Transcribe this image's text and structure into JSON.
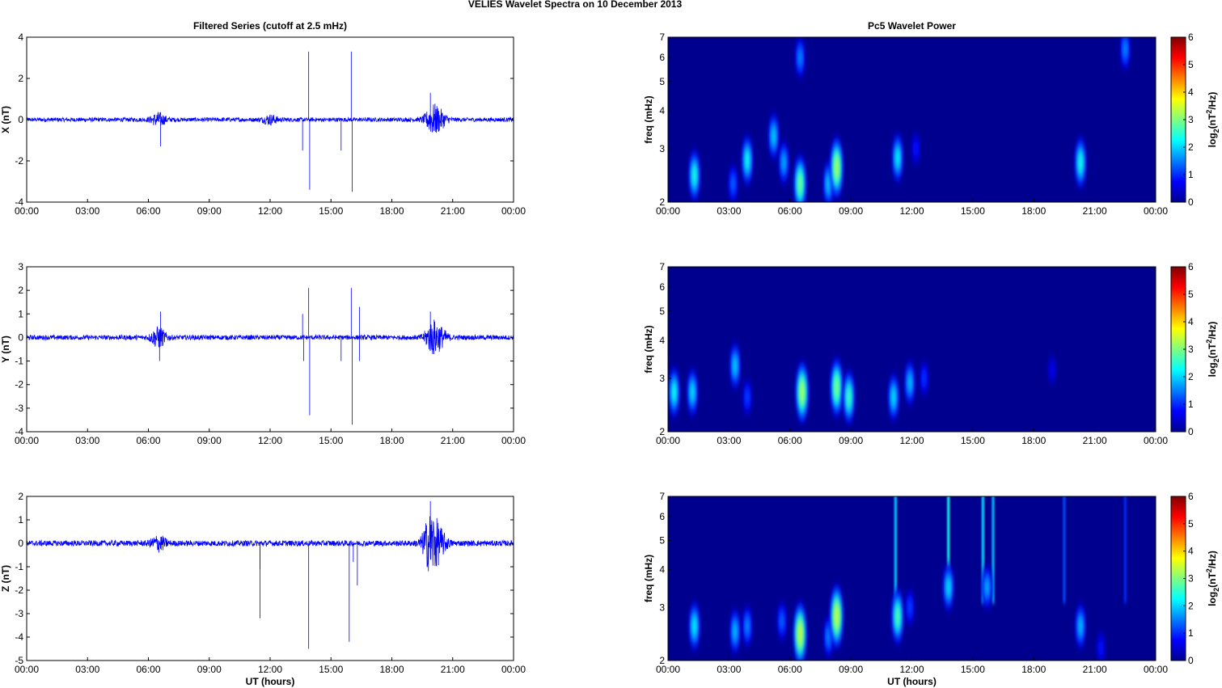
{
  "figure_title": "VELIES Wavelet Spectra on 10 December  2013",
  "colors": {
    "signal": "#0000ff",
    "spectrogram_background": "#00008f"
  },
  "chart_data": [
    {
      "type": "line",
      "panel": "x-series",
      "title": "Filtered Series (cutoff at 2.5 mHz)",
      "xlabel": "",
      "ylabel": "X (nT)",
      "x_ticks": [
        "00:00",
        "03:00",
        "06:00",
        "09:00",
        "12:00",
        "15:00",
        "18:00",
        "21:00",
        "00:00"
      ],
      "xlim": [
        0,
        24
      ],
      "ylim": [
        -4,
        4
      ],
      "y_ticks": [
        -4,
        -2,
        0,
        2,
        4
      ],
      "noise_amplitude": 0.1,
      "bursts": [
        [
          6.5,
          0.3
        ],
        [
          20.0,
          0.6
        ],
        [
          20.4,
          0.3
        ],
        [
          12.0,
          0.2
        ]
      ],
      "spikes": [
        [
          13.6,
          -1.5
        ],
        [
          13.9,
          3.3
        ],
        [
          13.95,
          -3.4
        ],
        [
          15.5,
          -1.5
        ],
        [
          16.0,
          3.3
        ],
        [
          16.05,
          -3.5
        ],
        [
          6.6,
          -1.3
        ],
        [
          19.9,
          1.3
        ]
      ]
    },
    {
      "type": "heatmap",
      "panel": "x-spectrum",
      "title": "Pc5 Wavelet Power",
      "xlabel": "",
      "ylabel": "freq (mHz)",
      "x_ticks": [
        "00:00",
        "03:00",
        "06:00",
        "09:00",
        "12:00",
        "15:00",
        "18:00",
        "21:00",
        "00:00"
      ],
      "xlim": [
        0,
        24
      ],
      "ylim": [
        2,
        7
      ],
      "y_scale": "log",
      "y_ticks": [
        2,
        3,
        4,
        5,
        6,
        7
      ],
      "colorbar_label": "log2(nT2/Hz)",
      "colorbar_ticks": [
        0,
        1,
        2,
        3,
        4,
        5,
        6
      ],
      "blobs": [
        {
          "t": 1.3,
          "f": 2.45,
          "power": 2.4
        },
        {
          "t": 3.9,
          "f": 2.75,
          "power": 2.3
        },
        {
          "t": 3.2,
          "f": 2.3,
          "power": 1.4
        },
        {
          "t": 5.2,
          "f": 3.3,
          "power": 2.0
        },
        {
          "t": 5.7,
          "f": 2.7,
          "power": 1.8
        },
        {
          "t": 6.5,
          "f": 2.3,
          "power": 2.9
        },
        {
          "t": 6.5,
          "f": 6.0,
          "power": 1.6
        },
        {
          "t": 7.9,
          "f": 2.3,
          "power": 2.0
        },
        {
          "t": 8.3,
          "f": 2.6,
          "power": 3.2
        },
        {
          "t": 11.3,
          "f": 2.8,
          "power": 2.2
        },
        {
          "t": 12.2,
          "f": 3.0,
          "power": 0.9
        },
        {
          "t": 20.3,
          "f": 2.7,
          "power": 2.4
        },
        {
          "t": 22.5,
          "f": 6.4,
          "power": 1.6
        }
      ]
    },
    {
      "type": "line",
      "panel": "y-series",
      "title": "",
      "xlabel": "",
      "ylabel": "Y (nT)",
      "x_ticks": [
        "00:00",
        "03:00",
        "06:00",
        "09:00",
        "12:00",
        "15:00",
        "18:00",
        "21:00",
        "00:00"
      ],
      "xlim": [
        0,
        24
      ],
      "ylim": [
        -4,
        3
      ],
      "y_ticks": [
        -4,
        -3,
        -2,
        -1,
        0,
        1,
        2,
        3
      ],
      "noise_amplitude": 0.1,
      "bursts": [
        [
          6.5,
          0.4
        ],
        [
          20.0,
          0.6
        ],
        [
          20.4,
          0.3
        ]
      ],
      "spikes": [
        [
          13.6,
          1.0
        ],
        [
          13.65,
          -1.0
        ],
        [
          13.9,
          2.1
        ],
        [
          13.95,
          -3.3
        ],
        [
          15.5,
          -1.0
        ],
        [
          16.0,
          2.1
        ],
        [
          16.05,
          -3.7
        ],
        [
          16.4,
          1.3
        ],
        [
          16.4,
          -1.0
        ],
        [
          6.6,
          1.1
        ],
        [
          6.55,
          -1.0
        ],
        [
          19.9,
          1.1
        ]
      ]
    },
    {
      "type": "heatmap",
      "panel": "y-spectrum",
      "title": "",
      "xlabel": "",
      "ylabel": "freq (mHz)",
      "x_ticks": [
        "00:00",
        "03:00",
        "06:00",
        "09:00",
        "12:00",
        "15:00",
        "18:00",
        "21:00",
        "00:00"
      ],
      "xlim": [
        0,
        24
      ],
      "ylim": [
        2,
        7
      ],
      "y_scale": "log",
      "y_ticks": [
        2,
        3,
        4,
        5,
        6,
        7
      ],
      "colorbar_label": "log2(nT2/Hz)",
      "colorbar_ticks": [
        0,
        1,
        2,
        3,
        4,
        5,
        6
      ],
      "blobs": [
        {
          "t": 0.3,
          "f": 2.7,
          "power": 2.3
        },
        {
          "t": 1.2,
          "f": 2.7,
          "power": 2.1
        },
        {
          "t": 3.3,
          "f": 3.3,
          "power": 2.0
        },
        {
          "t": 3.9,
          "f": 2.6,
          "power": 1.2
        },
        {
          "t": 6.6,
          "f": 2.7,
          "power": 3.2
        },
        {
          "t": 8.3,
          "f": 2.8,
          "power": 3.0
        },
        {
          "t": 8.9,
          "f": 2.6,
          "power": 2.6
        },
        {
          "t": 11.1,
          "f": 2.6,
          "power": 2.1
        },
        {
          "t": 11.9,
          "f": 2.9,
          "power": 1.9
        },
        {
          "t": 12.6,
          "f": 3.0,
          "power": 1.1
        },
        {
          "t": 18.9,
          "f": 3.2,
          "power": 0.7
        }
      ]
    },
    {
      "type": "line",
      "panel": "z-series",
      "title": "",
      "xlabel": "UT (hours)",
      "ylabel": "Z (nT)",
      "x_ticks": [
        "00:00",
        "03:00",
        "06:00",
        "09:00",
        "12:00",
        "15:00",
        "18:00",
        "21:00",
        "00:00"
      ],
      "xlim": [
        0,
        24
      ],
      "ylim": [
        -5,
        2
      ],
      "y_ticks": [
        -5,
        -4,
        -3,
        -2,
        -1,
        0,
        1,
        2
      ],
      "noise_amplitude": 0.12,
      "bursts": [
        [
          6.5,
          0.3
        ],
        [
          20.0,
          0.8
        ],
        [
          20.4,
          0.4
        ],
        [
          19.8,
          0.5
        ]
      ],
      "spikes": [
        [
          11.5,
          -3.2
        ],
        [
          11.5,
          -1.1
        ],
        [
          13.9,
          -4.5
        ],
        [
          15.9,
          -4.2
        ],
        [
          16.3,
          -1.8
        ],
        [
          16.1,
          -0.8
        ],
        [
          19.9,
          1.8
        ]
      ]
    },
    {
      "type": "heatmap",
      "panel": "z-spectrum",
      "title": "",
      "xlabel": "UT (hours)",
      "ylabel": "freq (mHz)",
      "x_ticks": [
        "00:00",
        "03:00",
        "06:00",
        "09:00",
        "12:00",
        "15:00",
        "18:00",
        "21:00",
        "00:00"
      ],
      "xlim": [
        0,
        24
      ],
      "ylim": [
        2,
        7
      ],
      "y_scale": "log",
      "y_ticks": [
        2,
        3,
        4,
        5,
        6,
        7
      ],
      "colorbar_label": "log2(nT2/Hz)",
      "colorbar_ticks": [
        0,
        1,
        2,
        3,
        4,
        5,
        6
      ],
      "blobs": [
        {
          "t": 1.3,
          "f": 2.6,
          "power": 2.2
        },
        {
          "t": 3.3,
          "f": 2.5,
          "power": 1.9
        },
        {
          "t": 3.9,
          "f": 2.6,
          "power": 1.6
        },
        {
          "t": 5.6,
          "f": 2.7,
          "power": 1.4
        },
        {
          "t": 6.5,
          "f": 2.45,
          "power": 3.4
        },
        {
          "t": 7.9,
          "f": 2.4,
          "power": 1.6
        },
        {
          "t": 8.3,
          "f": 2.8,
          "power": 3.4
        },
        {
          "t": 11.3,
          "f": 2.8,
          "power": 2.7
        },
        {
          "t": 11.9,
          "f": 3.0,
          "power": 1.2
        },
        {
          "t": 13.8,
          "f": 3.5,
          "power": 2.1
        },
        {
          "t": 15.7,
          "f": 3.5,
          "power": 1.8
        },
        {
          "t": 20.3,
          "f": 2.6,
          "power": 1.9
        },
        {
          "t": 21.3,
          "f": 2.2,
          "power": 0.9
        }
      ],
      "streaks": [
        {
          "t": 11.2,
          "power": 2.0
        },
        {
          "t": 13.8,
          "power": 2.4
        },
        {
          "t": 15.5,
          "power": 2.1
        },
        {
          "t": 16.0,
          "power": 1.9
        },
        {
          "t": 19.5,
          "power": 1.2
        },
        {
          "t": 22.5,
          "power": 1.0
        }
      ]
    }
  ]
}
